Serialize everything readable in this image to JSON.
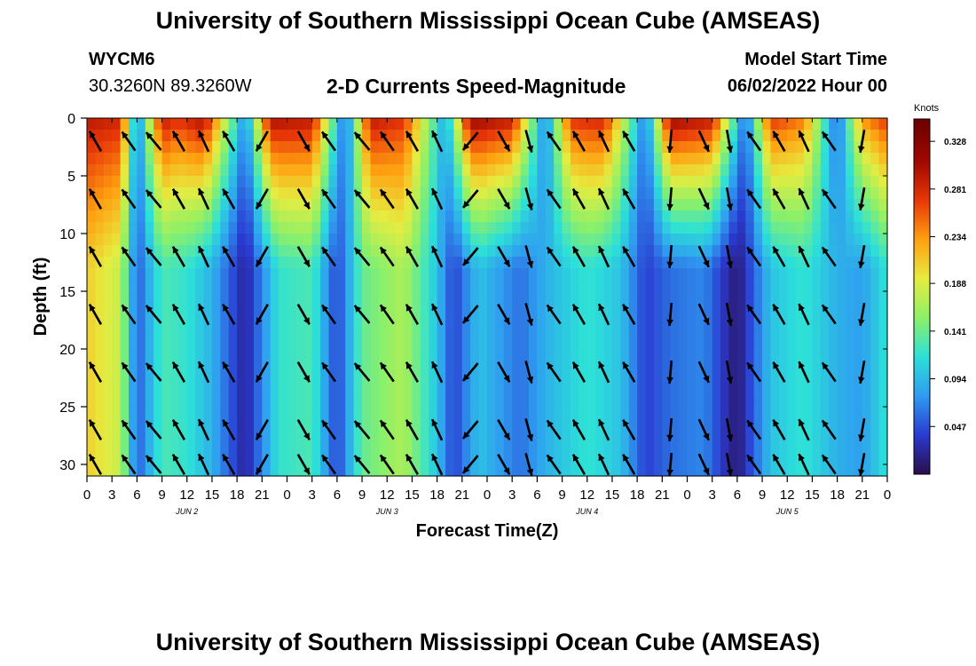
{
  "header": {
    "title": "University of Southern Mississippi Ocean Cube (AMSEAS)",
    "station": "WYCM6",
    "coords": "30.3260N  89.3260W",
    "subtitle": "2-D Currents Speed-Magnitude",
    "start_label": "Model Start Time",
    "start_value": "06/02/2022 Hour 00"
  },
  "footer": {
    "title": "University of Southern Mississippi Ocean Cube (AMSEAS)"
  },
  "chart_data": {
    "type": "heatmap",
    "title": "2-D Currents Speed-Magnitude",
    "xlabel": "Forecast Time(Z)",
    "ylabel": "Depth (ft)",
    "xlim": [
      0,
      96
    ],
    "ylim": [
      0,
      31
    ],
    "x_tick_labels": [
      "0",
      "3",
      "6",
      "9",
      "12",
      "15",
      "18",
      "21",
      "0",
      "3",
      "6",
      "9",
      "12",
      "15",
      "18",
      "21",
      "0",
      "3",
      "6",
      "9",
      "12",
      "15",
      "18",
      "21",
      "0",
      "3",
      "6",
      "9",
      "12",
      "15",
      "18",
      "21",
      "0"
    ],
    "y_ticks": [
      0,
      5,
      10,
      15,
      20,
      25,
      30
    ],
    "day_labels": [
      {
        "label": "JUN 2",
        "hour": 12
      },
      {
        "label": "JUN 3",
        "hour": 36
      },
      {
        "label": "JUN 4",
        "hour": 60
      },
      {
        "label": "JUN 5",
        "hour": 84
      }
    ],
    "colorbar": {
      "title": "Knots",
      "ticks": [
        0.328,
        0.281,
        0.234,
        0.188,
        0.141,
        0.094,
        0.047
      ],
      "range": [
        0.0,
        0.35
      ],
      "colors": [
        "#2a0e4a",
        "#2a3ad0",
        "#2f9bf0",
        "#2ce0d8",
        "#8cf068",
        "#e6ec40",
        "#ffa010",
        "#e83808",
        "#a00800",
        "#6a0000"
      ]
    },
    "surface_speed_by_hour": [
      [
        0,
        0.3
      ],
      [
        4,
        0.29
      ],
      [
        6,
        0.06
      ],
      [
        9,
        0.3
      ],
      [
        11,
        0.28
      ],
      [
        14,
        0.31
      ],
      [
        19,
        0.07
      ],
      [
        22,
        0.31
      ],
      [
        27,
        0.3
      ],
      [
        31,
        0.05
      ],
      [
        34,
        0.3
      ],
      [
        38,
        0.28
      ],
      [
        43,
        0.08
      ],
      [
        46,
        0.32
      ],
      [
        51,
        0.3
      ],
      [
        55,
        0.06
      ],
      [
        58,
        0.28
      ],
      [
        62,
        0.29
      ],
      [
        67,
        0.06
      ],
      [
        70,
        0.32
      ],
      [
        75,
        0.3
      ],
      [
        79,
        0.05
      ],
      [
        82,
        0.28
      ],
      [
        86,
        0.25
      ],
      [
        90,
        0.05
      ],
      [
        93,
        0.24
      ],
      [
        96,
        0.28
      ]
    ],
    "deep_speed_by_hour": [
      [
        0,
        0.21
      ],
      [
        4,
        0.18
      ],
      [
        6,
        0.05
      ],
      [
        9,
        0.13
      ],
      [
        12,
        0.12
      ],
      [
        15,
        0.09
      ],
      [
        19,
        0.02
      ],
      [
        23,
        0.12
      ],
      [
        27,
        0.13
      ],
      [
        30,
        0.04
      ],
      [
        33,
        0.14
      ],
      [
        38,
        0.17
      ],
      [
        42,
        0.1
      ],
      [
        44,
        0.04
      ],
      [
        47,
        0.1
      ],
      [
        52,
        0.06
      ],
      [
        55,
        0.09
      ],
      [
        60,
        0.12
      ],
      [
        64,
        0.1
      ],
      [
        67,
        0.04
      ],
      [
        70,
        0.06
      ],
      [
        74,
        0.07
      ],
      [
        78,
        0.01
      ],
      [
        82,
        0.1
      ],
      [
        86,
        0.12
      ],
      [
        90,
        0.09
      ],
      [
        93,
        0.08
      ],
      [
        96,
        0.12
      ]
    ],
    "vector_columns": [
      {
        "hour": 1,
        "angle": 240
      },
      {
        "hour": 5,
        "angle": 235
      },
      {
        "hour": 8,
        "angle": 230
      },
      {
        "hour": 11,
        "angle": 240
      },
      {
        "hour": 14,
        "angle": 245
      },
      {
        "hour": 17,
        "angle": 240
      },
      {
        "hour": 21,
        "angle": 120
      },
      {
        "hour": 26,
        "angle": 60
      },
      {
        "hour": 29,
        "angle": 235
      },
      {
        "hour": 33,
        "angle": 230
      },
      {
        "hour": 36,
        "angle": 235
      },
      {
        "hour": 39,
        "angle": 240
      },
      {
        "hour": 42,
        "angle": 245
      },
      {
        "hour": 46,
        "angle": 130
      },
      {
        "hour": 50,
        "angle": 60
      },
      {
        "hour": 53,
        "angle": 75
      },
      {
        "hour": 56,
        "angle": 235
      },
      {
        "hour": 59,
        "angle": 240
      },
      {
        "hour": 62,
        "angle": 245
      },
      {
        "hour": 65,
        "angle": 240
      },
      {
        "hour": 70,
        "angle": 95
      },
      {
        "hour": 74,
        "angle": 65
      },
      {
        "hour": 77,
        "angle": 80
      },
      {
        "hour": 80,
        "angle": 235
      },
      {
        "hour": 83,
        "angle": 240
      },
      {
        "hour": 86,
        "angle": 245
      },
      {
        "hour": 89,
        "angle": 235
      },
      {
        "hour": 93,
        "angle": 100
      }
    ],
    "vector_depths": [
      2,
      7,
      12,
      17,
      22,
      27,
      30
    ]
  }
}
